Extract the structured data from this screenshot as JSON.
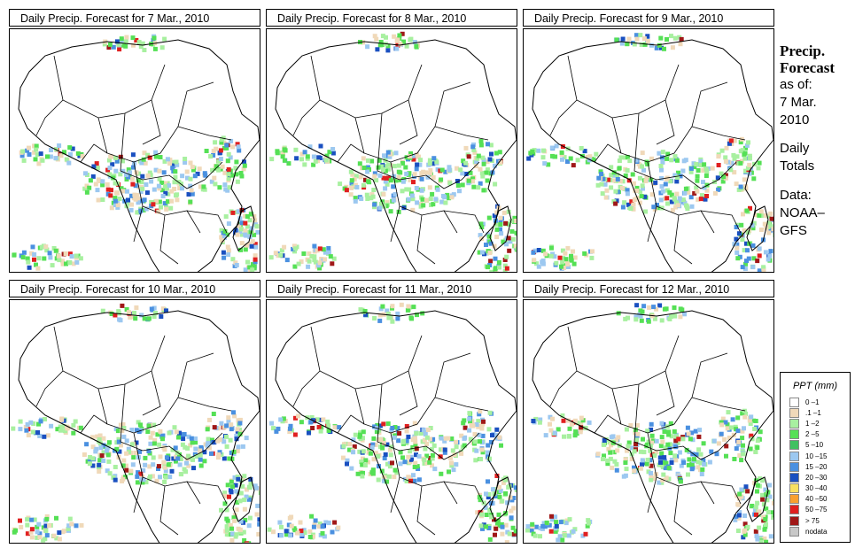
{
  "panels": [
    {
      "title": "Daily Precip. Forecast for  7 Mar., 2010"
    },
    {
      "title": "Daily Precip. Forecast for  8 Mar., 2010"
    },
    {
      "title": "Daily Precip. Forecast for  9 Mar., 2010"
    },
    {
      "title": "Daily Precip. Forecast for  10 Mar., 2010"
    },
    {
      "title": "Daily Precip. Forecast for  11 Mar., 2010"
    },
    {
      "title": "Daily Precip. Forecast for  12 Mar., 2010"
    }
  ],
  "sidebar": {
    "heading1": "Precip.",
    "heading2": "Forecast",
    "asof1": "as of:",
    "asof2": "7 Mar.",
    "asof3": "2010",
    "totals1": "Daily",
    "totals2": "Totals",
    "data1": "Data:",
    "data2": "NOAA–",
    "data3": "GFS"
  },
  "legend": {
    "title": "PPT (mm)",
    "items": [
      {
        "label": "0 –1",
        "color": "#ffffff"
      },
      {
        "label": ".1 –1",
        "color": "#f0d9b9"
      },
      {
        "label": "1 –2",
        "color": "#a8f0a0"
      },
      {
        "label": "2 –5",
        "color": "#55e055"
      },
      {
        "label": "5 –10",
        "color": "#40c060"
      },
      {
        "label": "10 –15",
        "color": "#9cc8f0"
      },
      {
        "label": "15 –20",
        "color": "#4a90e0"
      },
      {
        "label": "20 –30",
        "color": "#1a50c0"
      },
      {
        "label": "30 –40",
        "color": "#f8e060"
      },
      {
        "label": "40 –50",
        "color": "#f8a030"
      },
      {
        "label": "50 –75",
        "color": "#e02020"
      },
      {
        "label": "> 75",
        "color": "#a01818"
      },
      {
        "label": "nodata",
        "color": "#c8c8c8"
      }
    ]
  }
}
